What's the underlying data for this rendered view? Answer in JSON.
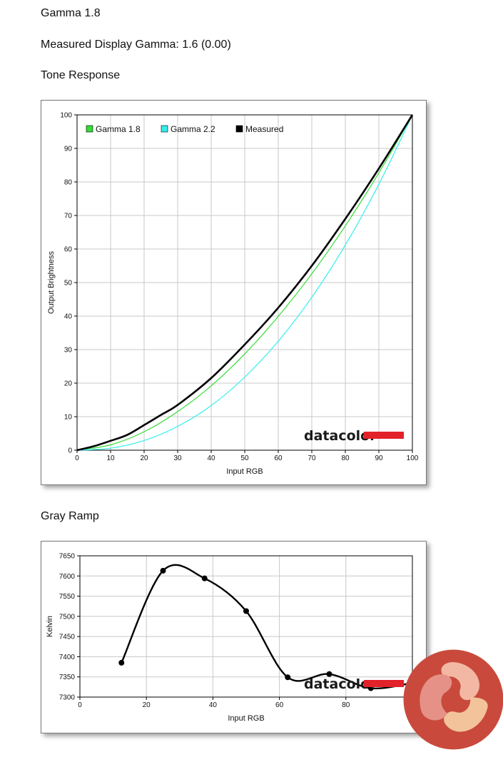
{
  "headings": {
    "gamma_target": "Gamma 1.8",
    "measured_gamma": "Measured Display Gamma: 1.6 (0.00)",
    "tone_response": "Tone Response",
    "gray_ramp": "Gray Ramp"
  },
  "watermark_text": "datacolor",
  "colors": {
    "gamma18": "#33dd33",
    "gamma22": "#33eeee",
    "measured": "#000000",
    "logo_bar": "#e32129",
    "grid": "#c8c8c8"
  },
  "chart_data": [
    {
      "type": "line",
      "xlabel": "Input RGB",
      "ylabel": "Output Brightness",
      "xlim": [
        0,
        100
      ],
      "ylim": [
        0,
        100
      ],
      "xticks": [
        0,
        10,
        20,
        30,
        40,
        50,
        60,
        70,
        80,
        90,
        100
      ],
      "yticks": [
        0,
        10,
        20,
        30,
        40,
        50,
        60,
        70,
        80,
        90,
        100
      ],
      "grid": true,
      "legend_placement": "top-left",
      "series": [
        {
          "name": "Gamma 1.8",
          "x": [
            0,
            10,
            20,
            30,
            40,
            50,
            60,
            70,
            80,
            90,
            100
          ],
          "values": [
            0,
            1.6,
            5.5,
            11.5,
            19.2,
            28.7,
            39.9,
            52.6,
            66.9,
            82.7,
            100
          ]
        },
        {
          "name": "Gamma 2.2",
          "x": [
            0,
            10,
            20,
            30,
            40,
            50,
            60,
            70,
            80,
            90,
            100
          ],
          "values": [
            0,
            0.6,
            2.9,
            7.1,
            13.3,
            21.8,
            32.5,
            45.6,
            61.2,
            79.3,
            100
          ]
        },
        {
          "name": "Measured",
          "x": [
            0,
            5,
            10,
            15,
            20,
            25,
            30,
            40,
            50,
            60,
            70,
            80,
            90,
            100
          ],
          "values": [
            0,
            1.2,
            2.8,
            4.6,
            7.5,
            10.5,
            13.5,
            21.5,
            31.5,
            42.5,
            55,
            69,
            84,
            100
          ]
        }
      ]
    },
    {
      "type": "line",
      "xlabel": "Input RGB",
      "ylabel": "Kelvin",
      "xlim": [
        0,
        100
      ],
      "ylim": [
        7300,
        7650
      ],
      "xticks": [
        0,
        20,
        40,
        60,
        80,
        100
      ],
      "yticks": [
        7300,
        7350,
        7400,
        7450,
        7500,
        7550,
        7600,
        7650
      ],
      "grid": true,
      "series": [
        {
          "x": [
            12.5,
            25,
            37.5,
            50,
            62.5,
            75,
            87.5,
            100
          ],
          "values": [
            7385,
            7613,
            7594,
            7513,
            7349,
            7357,
            7322,
            7335
          ]
        }
      ]
    }
  ]
}
